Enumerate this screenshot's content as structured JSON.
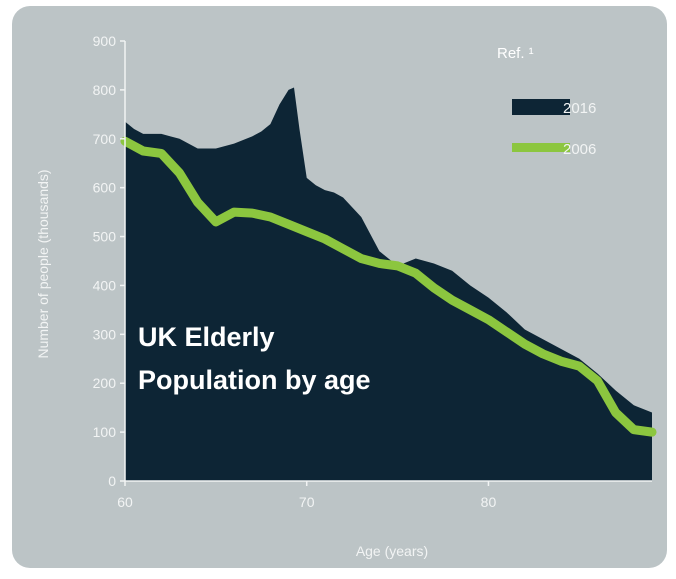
{
  "reference_note": "Ref. ¹",
  "colors": {
    "background": "#bcc4c6",
    "area_2016": "#0d2535",
    "line_2006": "#8cc63f",
    "text": "#f2f4f4"
  },
  "chart_data": {
    "type": "area",
    "title_lines": [
      "UK Elderly",
      "Population by age"
    ],
    "xlabel": "Age (years)",
    "ylabel": "Number of people (thousands)",
    "xlim": [
      60,
      89
    ],
    "ylim": [
      0,
      900
    ],
    "xticks": [
      60,
      70,
      80
    ],
    "yticks": [
      0,
      100,
      200,
      300,
      400,
      500,
      600,
      700,
      800,
      900
    ],
    "grid": false,
    "legend_position": "top-right",
    "series": [
      {
        "name": "2016",
        "kind": "area",
        "x": [
          60,
          60.5,
          61,
          61.5,
          62,
          62.5,
          63,
          64,
          65,
          66,
          67,
          67.5,
          68,
          68.5,
          69,
          69.3,
          69.6,
          70,
          70.5,
          71,
          71.5,
          72,
          72.5,
          73,
          74,
          75,
          76,
          77,
          78,
          79,
          80,
          81,
          82,
          83,
          84,
          85,
          86,
          87,
          88,
          89
        ],
        "y": [
          735,
          720,
          710,
          710,
          710,
          705,
          700,
          680,
          680,
          690,
          705,
          715,
          730,
          770,
          800,
          805,
          720,
          620,
          605,
          595,
          590,
          580,
          560,
          540,
          470,
          440,
          455,
          445,
          430,
          400,
          375,
          345,
          310,
          290,
          270,
          250,
          220,
          185,
          155,
          140
        ]
      },
      {
        "name": "2006",
        "kind": "line",
        "x": [
          60,
          61,
          62,
          63,
          64,
          65,
          66,
          67,
          68,
          69,
          70,
          71,
          72,
          73,
          74,
          75,
          76,
          77,
          78,
          79,
          80,
          81,
          82,
          83,
          84,
          85,
          86,
          87,
          88,
          89
        ],
        "y": [
          695,
          675,
          670,
          630,
          570,
          530,
          550,
          548,
          540,
          525,
          510,
          495,
          475,
          455,
          445,
          440,
          425,
          395,
          370,
          350,
          330,
          305,
          280,
          260,
          245,
          235,
          205,
          140,
          105,
          100
        ]
      }
    ]
  }
}
